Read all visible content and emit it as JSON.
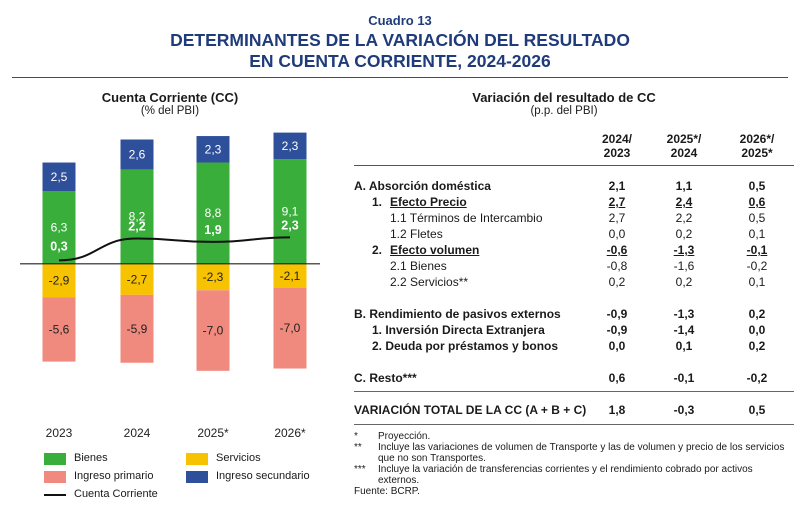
{
  "header": {
    "box_number": "Cuadro 13",
    "title_line1": "DETERMINANTES DE LA VARIACIÓN DEL RESULTADO",
    "title_line2": "EN CUENTA CORRIENTE, 2024-2026"
  },
  "left_panel": {
    "title": "Cuenta Corriente (CC)",
    "subtitle": "(% del PBI)"
  },
  "right_panel": {
    "title": "Variación del resultado de CC",
    "subtitle": "(p.p. del PBI)",
    "col_headers": [
      {
        "l1": "2024/",
        "l2": "2023"
      },
      {
        "l1": "2025*/",
        "l2": "2024"
      },
      {
        "l1": "2026*/",
        "l2": "2025*"
      }
    ],
    "rows": [
      {
        "label": "A. Absorción doméstica",
        "v": [
          "2,1",
          "1,1",
          "0,5"
        ],
        "style": "b"
      },
      {
        "label": "1.",
        "label2": "Efecto Precio",
        "v": [
          "2,7",
          "2,4",
          "0,6"
        ],
        "style": "bu"
      },
      {
        "label": "1.1  Términos de Intercambio",
        "v": [
          "2,7",
          "2,2",
          "0,5"
        ],
        "style": "n"
      },
      {
        "label": "1.2  Fletes",
        "v": [
          "0,0",
          "0,2",
          "0,1"
        ],
        "style": "n"
      },
      {
        "label": "2.",
        "label2": "Efecto volumen",
        "v": [
          "-0,6",
          "-1,3",
          "-0,1"
        ],
        "style": "bu"
      },
      {
        "label": "2.1  Bienes",
        "v": [
          "-0,8",
          "-1,6",
          "-0,2"
        ],
        "style": "n"
      },
      {
        "label": "2.2  Servicios**",
        "v": [
          "0,2",
          "0,2",
          "0,1"
        ],
        "style": "n"
      },
      {
        "label": "B. Rendimiento de pasivos externos",
        "v": [
          "-0,9",
          "-1,3",
          "0,2"
        ],
        "style": "b"
      },
      {
        "label": "1.  Inversión Directa Extranjera",
        "v": [
          "-0,9",
          "-1,4",
          "0,0"
        ],
        "style": "b"
      },
      {
        "label": "2.  Deuda por préstamos y bonos",
        "v": [
          "0,0",
          "0,1",
          "0,2"
        ],
        "style": "b"
      },
      {
        "label": "C. Resto***",
        "v": [
          "0,6",
          "-0,1",
          "-0,2"
        ],
        "style": "b"
      },
      {
        "label": "VARIACIÓN TOTAL DE LA CC (A + B + C)",
        "v": [
          "1,8",
          "-0,3",
          "0,5"
        ],
        "style": "b"
      }
    ],
    "notes": [
      {
        "mark": "*",
        "text": "Proyección."
      },
      {
        "mark": "**",
        "text": "Incluye las variaciones de volumen de Transporte y las de volumen y precio de los servicios que no son Transportes."
      },
      {
        "mark": "***",
        "text": "Incluye la variación de transferencias corrientes y el rendimiento cobrado por activos externos."
      }
    ],
    "source": "Fuente: BCRP."
  },
  "chart_data": {
    "type": "bar",
    "stacked": true,
    "categories": [
      "2023",
      "2024",
      "2025*",
      "2026*"
    ],
    "series": [
      {
        "name": "Bienes",
        "color": "#3aae3a",
        "values": [
          6.3,
          8.2,
          8.8,
          9.1
        ],
        "labels": [
          "6,3",
          "8,2",
          "8,8",
          "9,1"
        ]
      },
      {
        "name": "Servicios",
        "color": "#f7c200",
        "values": [
          -2.9,
          -2.7,
          -2.3,
          -2.1
        ],
        "labels": [
          "-2,9",
          "-2,7",
          "-2,3",
          "-2,1"
        ]
      },
      {
        "name": "Ingreso primario",
        "color": "#f08a7e",
        "values": [
          -5.6,
          -5.9,
          -7.0,
          -7.0
        ],
        "labels": [
          "-5,6",
          "-5,9",
          "-7,0",
          "-7,0"
        ]
      },
      {
        "name": "Ingreso secundario",
        "color": "#2e4f9a",
        "values": [
          2.5,
          2.6,
          2.3,
          2.3
        ],
        "labels": [
          "2,5",
          "2,6",
          "2,3",
          "2,3"
        ]
      }
    ],
    "line": {
      "name": "Cuenta Corriente",
      "color": "#111111",
      "values": [
        0.3,
        2.2,
        1.9,
        2.3
      ],
      "labels": [
        "0,3",
        "2,2",
        "1,9",
        "2,3"
      ]
    },
    "ylim": [
      -13.4,
      11.8
    ],
    "grid": false,
    "legend_position": "bottom"
  }
}
